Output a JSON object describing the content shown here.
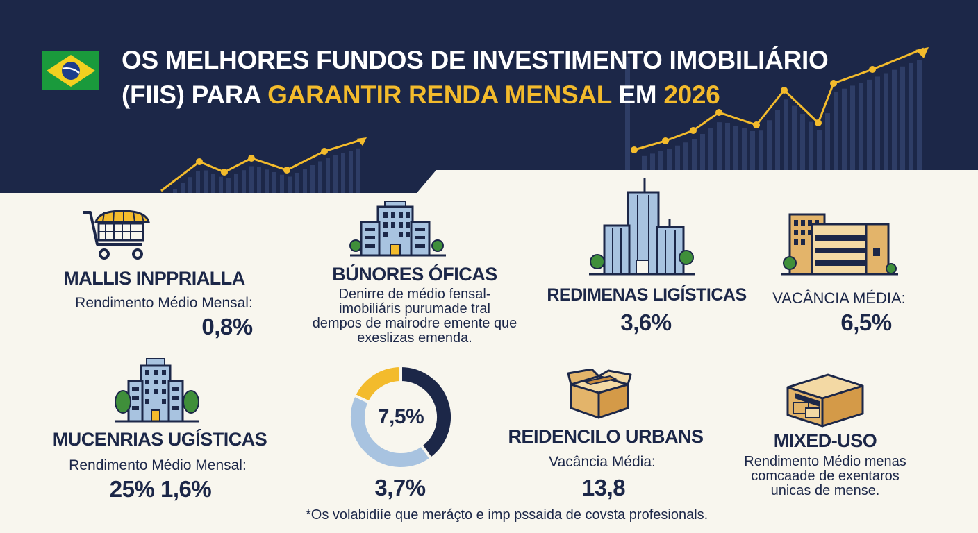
{
  "header": {
    "title_line1": "OS MELHORES FUNDOS DE INVESTIMENTO IMOBILIÁRIO",
    "title_line2_a": "(FIIs) PARA ",
    "title_line2_highlight": "GARANTIR RENDA MENSAL",
    "title_line2_b": " EM ",
    "title_line2_year": "2026",
    "flag_icon": "brazil-flag-icon",
    "background_color": "#1c2748",
    "accent_color": "#f3bb2c"
  },
  "cards": [
    {
      "icon": "shopping-cart-icon",
      "title": "MALLIS INPPRIALLA",
      "label": "Rendimento Médio Mensal:",
      "value": "0,8%"
    },
    {
      "icon": "office-building-icon",
      "title": "BÚNORES ÓFICAS",
      "desc": [
        "Denirre de médio fensal-",
        "imobiliáris purumade tral",
        "dempos de mairodre emente que",
        "exeslizas emenda."
      ]
    },
    {
      "icon": "skyscraper-icon",
      "title": "REDIMENAS LIGÍSTICAS",
      "value": "3,6%"
    },
    {
      "icon": "warehouse-building-icon",
      "title": "",
      "label": "VACÂNCIA MÉDIA:",
      "value": "6,5%"
    },
    {
      "icon": "apartment-building-icon",
      "title": "MUCENRIAS UGÍSTICAS",
      "label": "Rendimento Médio Mensal:",
      "value": "25% 1,6%"
    },
    {
      "icon": "donut-chart-icon",
      "title": "",
      "center_value": "7,5%",
      "value": "3,7%"
    },
    {
      "icon": "cardboard-box-icon",
      "title": "REIDENCILO URBANS",
      "label": "Vacância Média:",
      "value": "13,8"
    },
    {
      "icon": "storage-boxes-icon",
      "title": "MIXED-USO",
      "desc": [
        "Rendimento Médio menas",
        "comcaade de exentaros",
        "unicas de mense."
      ]
    }
  ],
  "donut": {
    "segments": [
      {
        "fraction": 0.4,
        "color": "#1c2748"
      },
      {
        "fraction": 0.42,
        "color": "#a8c3e0"
      },
      {
        "fraction": 0.18,
        "color": "#f3bb2c"
      }
    ]
  },
  "footnote": "*Os volabidiíe que meráçto e imp pssaida de covsta profesionals."
}
